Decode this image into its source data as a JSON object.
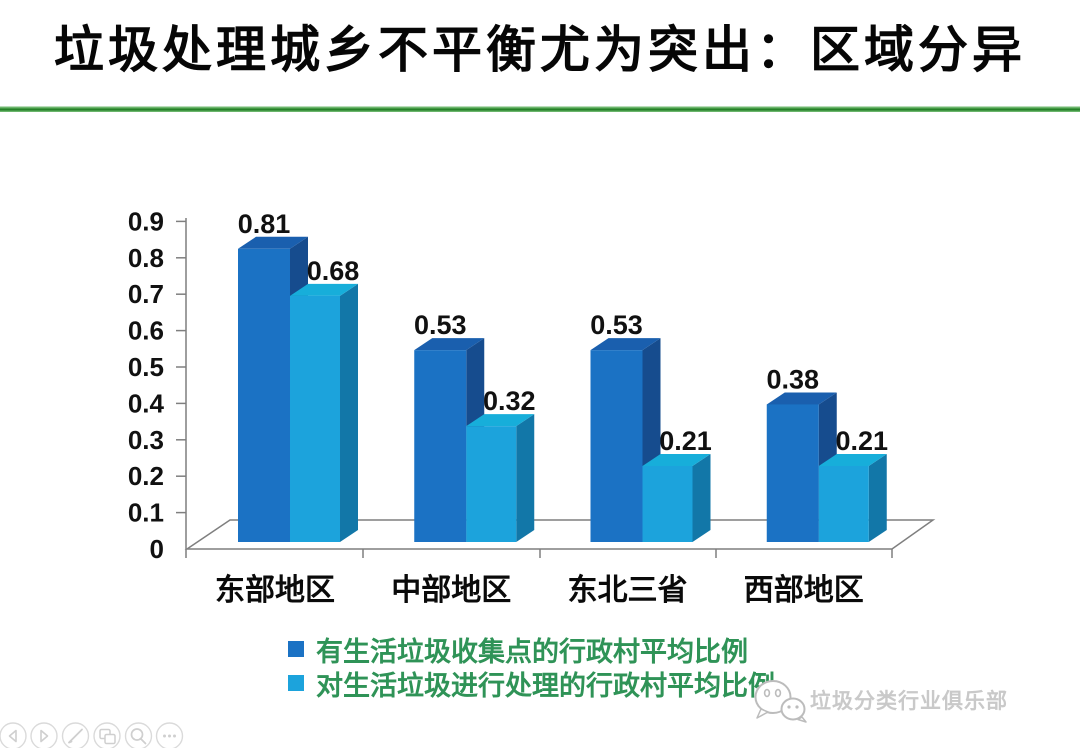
{
  "title": "垃圾处理城乡不平衡尤为突出：区域分异",
  "divider_color": "#1c7a1f",
  "chart_data": {
    "type": "bar",
    "variant": "3d-clustered-column",
    "title": "",
    "xlabel": "",
    "ylabel": "",
    "categories": [
      "东部地区",
      "中部地区",
      "东北三省",
      "西部地区"
    ],
    "series": [
      {
        "name": "有生活垃圾收集点的行政村平均比例",
        "values": [
          0.81,
          0.53,
          0.53,
          0.38
        ],
        "color": "#1B72C4",
        "color_top": "#1A5FAE",
        "color_side": "#164C8E"
      },
      {
        "name": "对生活垃圾进行处理的行政村平均比例",
        "values": [
          0.68,
          0.32,
          0.21,
          0.21
        ],
        "color": "#1CA3DC",
        "color_top": "#17AEDA",
        "color_side": "#1277A8"
      }
    ],
    "data_labels": [
      "0.81",
      "0.68",
      "0.53",
      "0.32",
      "0.53",
      "0.21",
      "0.38",
      "0.21"
    ],
    "ylim": [
      0,
      0.9
    ],
    "yticks": [
      0,
      0.1,
      0.2,
      0.3,
      0.4,
      0.5,
      0.6,
      0.7,
      0.8,
      0.9
    ],
    "grid": false,
    "legend_position": "bottom",
    "legend_text_color": "#2F9357",
    "axis_color": "#7F7F7F"
  },
  "watermark": {
    "icon": "wechat-icon",
    "text": "垃圾分类行业俱乐部"
  },
  "controls": {
    "items": [
      {
        "icon": "previous-slide-icon"
      },
      {
        "icon": "next-slide-icon"
      },
      {
        "icon": "pen-icon"
      },
      {
        "icon": "all-slides-icon"
      },
      {
        "icon": "zoom-icon"
      },
      {
        "icon": "more-options-icon"
      }
    ]
  }
}
